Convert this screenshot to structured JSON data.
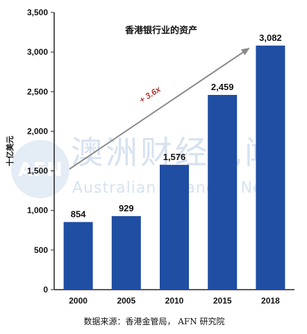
{
  "chart_data": {
    "type": "bar",
    "title": "香港银行业的资产",
    "ylabel": "十亿美元",
    "xlabel": "",
    "categories": [
      "2000",
      "2005",
      "2010",
      "2015",
      "2018"
    ],
    "values": [
      854,
      929,
      1576,
      2459,
      3082
    ],
    "value_labels": [
      "854",
      "929",
      "1,576",
      "2,459",
      "3,082"
    ],
    "ylim": [
      0,
      3500
    ],
    "yticks": [
      0,
      500,
      1000,
      1500,
      2000,
      2500,
      3000,
      3500
    ],
    "ytick_labels": [
      "0",
      "500",
      "1,000",
      "1,500",
      "2,000",
      "2,500",
      "3,000",
      "3,500"
    ],
    "bar_color": "#1f4ea3",
    "annotation": "+ 3.6x",
    "annotation_color": "#b03a2e",
    "arrow_color": "#888888",
    "grid": false,
    "legend": "none"
  },
  "source": "数据来源：香港金管局， AFN 研究院",
  "watermark": {
    "logo": "AFN",
    "chinese": "澳洲财经见闻",
    "english": "Australian Financial News"
  }
}
